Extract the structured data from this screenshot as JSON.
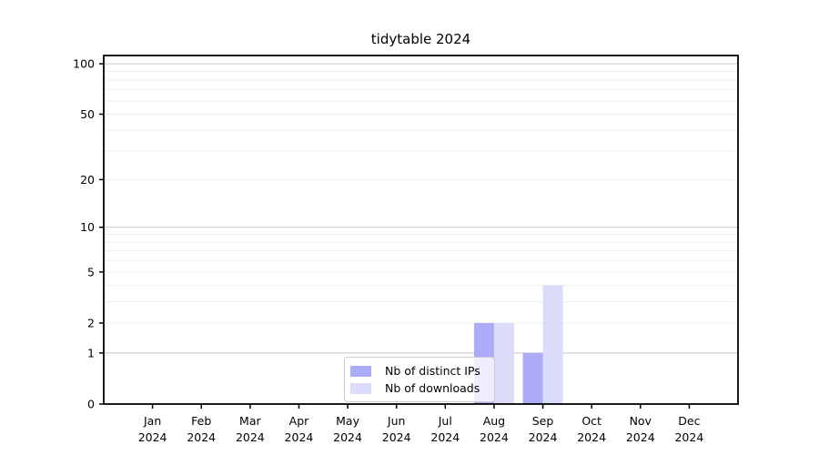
{
  "chart_data": {
    "type": "bar",
    "title": "tidytable 2024",
    "categories": [
      "Jan",
      "Feb",
      "Mar",
      "Apr",
      "May",
      "Jun",
      "Jul",
      "Aug",
      "Sep",
      "Oct",
      "Nov",
      "Dec"
    ],
    "x_tick_second_line": "2024",
    "series": [
      {
        "name": "Nb of distinct IPs",
        "color": "#ababf7",
        "values": [
          0,
          0,
          0,
          0,
          0,
          0,
          0,
          2,
          1,
          0,
          0,
          0
        ]
      },
      {
        "name": "Nb of downloads",
        "color": "#dbdbfa",
        "values": [
          0,
          0,
          0,
          0,
          0,
          0,
          0,
          2,
          4,
          0,
          0,
          0
        ]
      }
    ],
    "y_scale": "log1p",
    "y_ticks": [
      0,
      1,
      2,
      5,
      10,
      20,
      50,
      100
    ],
    "ylim": [
      0,
      112
    ],
    "minor_gridlines": [
      2,
      3,
      4,
      5,
      6,
      7,
      8,
      9,
      20,
      30,
      40,
      50,
      60,
      70,
      80,
      90
    ],
    "major_gridlines": [
      1,
      10,
      100
    ],
    "legend": {
      "position": "lower-center"
    },
    "colors": {
      "spine": "#000000",
      "tick_label": "#000000",
      "grid_minor": "#ededed",
      "grid_major": "#c6c6c6",
      "legend_border": "#cccccc",
      "legend_bg": "rgba(255,255,255,0.8)"
    }
  }
}
